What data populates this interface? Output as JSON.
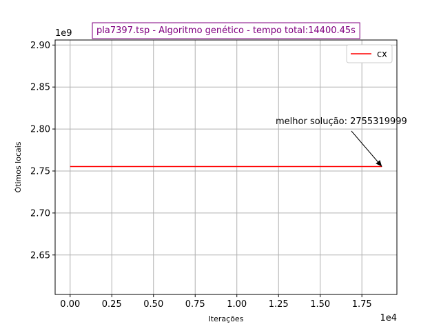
{
  "chart_data": {
    "type": "line",
    "title": "pla7397.tsp - Algoritmo genético - tempo total:14400.45s",
    "title_color": "#800080",
    "xlabel": "Iterações",
    "ylabel": "Ótimos locais",
    "x_offset_label": "1e4",
    "y_offset_label": "1e9",
    "xlim": [
      -900,
      19600
    ],
    "ylim": [
      2603000000,
      2906000000
    ],
    "x_ticks": [
      0,
      2500,
      5000,
      7500,
      10000,
      12500,
      15000,
      17500
    ],
    "x_tick_labels": [
      "0.00",
      "0.25",
      "0.50",
      "0.75",
      "1.00",
      "1.25",
      "1.50",
      "1.75"
    ],
    "y_ticks": [
      2650000000,
      2700000000,
      2750000000,
      2800000000,
      2850000000,
      2900000000
    ],
    "y_tick_labels": [
      "2.65",
      "2.70",
      "2.75",
      "2.80",
      "2.85",
      "2.90"
    ],
    "grid": true,
    "legend_position": "top-right",
    "series": [
      {
        "name": "cx",
        "color": "#ff0000",
        "x": [
          0,
          18700
        ],
        "y": [
          2755319999,
          2755319999
        ]
      }
    ],
    "annotation": {
      "text": "melhor solução: 2755319999",
      "point": [
        18700,
        2755319999
      ]
    }
  }
}
